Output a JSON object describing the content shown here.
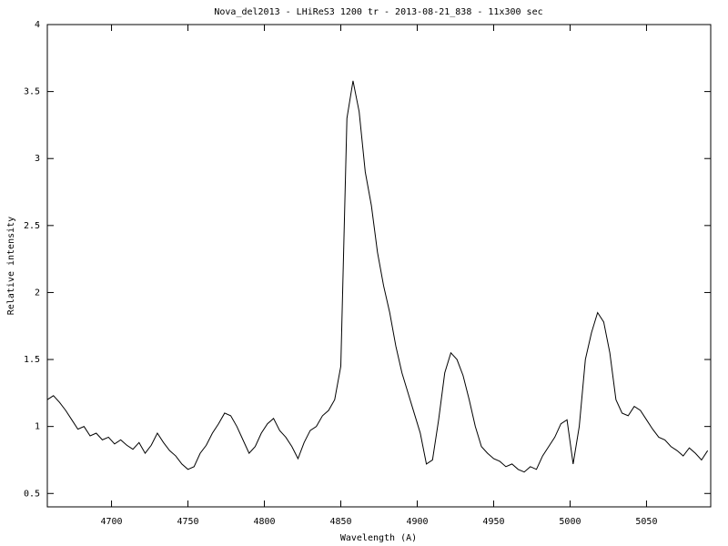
{
  "chart_data": {
    "type": "line",
    "title": "Nova_del2013 - LHiReS3 1200 tr  - 2013-08-21_838 - 11x300 sec",
    "x_label": "Wavelength (A)",
    "y_label": "Relative intensity",
    "x": [
      4658,
      4662,
      4666,
      4670,
      4674,
      4678,
      4682,
      4686,
      4690,
      4694,
      4698,
      4702,
      4706,
      4710,
      4714,
      4718,
      4722,
      4726,
      4730,
      4734,
      4738,
      4742,
      4746,
      4750,
      4754,
      4758,
      4762,
      4766,
      4770,
      4774,
      4778,
      4782,
      4786,
      4790,
      4794,
      4798,
      4802,
      4806,
      4810,
      4814,
      4818,
      4822,
      4826,
      4830,
      4834,
      4838,
      4842,
      4846,
      4850,
      4854,
      4858,
      4862,
      4866,
      4870,
      4874,
      4878,
      4882,
      4886,
      4890,
      4894,
      4898,
      4902,
      4906,
      4910,
      4914,
      4918,
      4922,
      4926,
      4930,
      4934,
      4938,
      4942,
      4946,
      4950,
      4954,
      4958,
      4962,
      4966,
      4970,
      4974,
      4978,
      4982,
      4986,
      4990,
      4994,
      4998,
      5002,
      5006,
      5010,
      5014,
      5018,
      5022,
      5026,
      5030,
      5034,
      5038,
      5042,
      5046,
      5050,
      5054,
      5058,
      5062,
      5066,
      5070,
      5074,
      5078,
      5082,
      5086,
      5090
    ],
    "series": [
      {
        "color": "#000000",
        "values": [
          1.2,
          1.23,
          1.18,
          1.12,
          1.05,
          0.98,
          1.0,
          0.93,
          0.95,
          0.9,
          0.92,
          0.87,
          0.9,
          0.86,
          0.83,
          0.88,
          0.8,
          0.86,
          0.95,
          0.88,
          0.82,
          0.78,
          0.72,
          0.68,
          0.7,
          0.8,
          0.86,
          0.95,
          1.02,
          1.1,
          1.08,
          1.0,
          0.9,
          0.8,
          0.85,
          0.95,
          1.02,
          1.06,
          0.97,
          0.92,
          0.85,
          0.76,
          0.88,
          0.97,
          1.0,
          1.08,
          1.12,
          1.2,
          1.45,
          3.3,
          3.58,
          3.35,
          2.9,
          2.65,
          2.3,
          2.05,
          1.85,
          1.6,
          1.4,
          1.25,
          1.1,
          0.95,
          0.72,
          0.75,
          1.05,
          1.4,
          1.55,
          1.5,
          1.38,
          1.2,
          1.0,
          0.85,
          0.8,
          0.76,
          0.74,
          0.7,
          0.72,
          0.68,
          0.66,
          0.7,
          0.68,
          0.78,
          0.85,
          0.92,
          1.02,
          1.05,
          0.72,
          1.0,
          1.5,
          1.7,
          1.85,
          1.78,
          1.55,
          1.2,
          1.1,
          1.08,
          1.15,
          1.12,
          1.05,
          0.98,
          0.92,
          0.9,
          0.85,
          0.82,
          0.78,
          0.84,
          0.8,
          0.75,
          0.82
        ]
      }
    ],
    "xlim": [
      4658,
      5092
    ],
    "ylim": [
      0.4,
      4
    ],
    "xticks": [
      4700,
      4750,
      4800,
      4850,
      4900,
      4950,
      5000,
      5050
    ],
    "yticks": [
      0.5,
      1,
      1.5,
      2,
      2.5,
      3,
      3.5,
      4
    ]
  }
}
